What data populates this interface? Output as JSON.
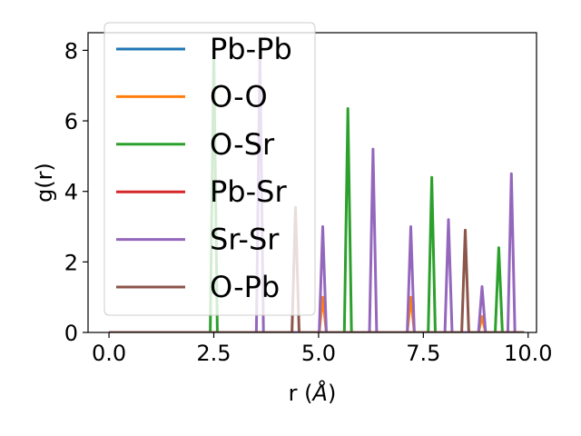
{
  "chart_data": {
    "type": "line",
    "title": "",
    "xlabel": "r (",
    "xlabel_unit": "Å",
    "xlabel_close": ")",
    "ylabel": "g(r)",
    "xlim": [
      -0.5,
      10.2
    ],
    "ylim": [
      0,
      8.5
    ],
    "xticks": [
      0.0,
      2.5,
      5.0,
      7.5,
      10.0
    ],
    "xtick_labels": [
      "0.0",
      "2.5",
      "5.0",
      "7.5",
      "10.0"
    ],
    "yticks": [
      0,
      2,
      4,
      6,
      8
    ],
    "ytick_labels": [
      "0",
      "2",
      "4",
      "6",
      "8"
    ],
    "grid": false,
    "legend_position": "upper-left",
    "series": [
      {
        "name": "Pb-Pb",
        "color": "#1f77b4",
        "peaks": []
      },
      {
        "name": "O-O",
        "color": "#ff7f0e",
        "peaks": [
          [
            5.1,
            1.0
          ],
          [
            7.2,
            1.0
          ],
          [
            8.9,
            0.45
          ]
        ]
      },
      {
        "name": "O-Sr",
        "color": "#2ca02c",
        "peaks": [
          [
            2.5,
            8.0
          ],
          [
            5.7,
            6.35
          ],
          [
            7.7,
            4.4
          ],
          [
            9.3,
            2.4
          ]
        ]
      },
      {
        "name": "Pb-Sr",
        "color": "#d62728",
        "peaks": []
      },
      {
        "name": "Sr-Sr",
        "color": "#9467bd",
        "peaks": [
          [
            3.6,
            8.0
          ],
          [
            5.1,
            3.0
          ],
          [
            6.3,
            5.2
          ],
          [
            7.2,
            3.0
          ],
          [
            8.1,
            3.2
          ],
          [
            8.9,
            1.3
          ],
          [
            9.6,
            4.5
          ]
        ]
      },
      {
        "name": "O-Pb",
        "color": "#8c564b",
        "peaks": [
          [
            4.45,
            3.55
          ],
          [
            8.5,
            2.9
          ]
        ]
      }
    ],
    "x_range_plotted": [
      0.0,
      9.9
    ]
  }
}
